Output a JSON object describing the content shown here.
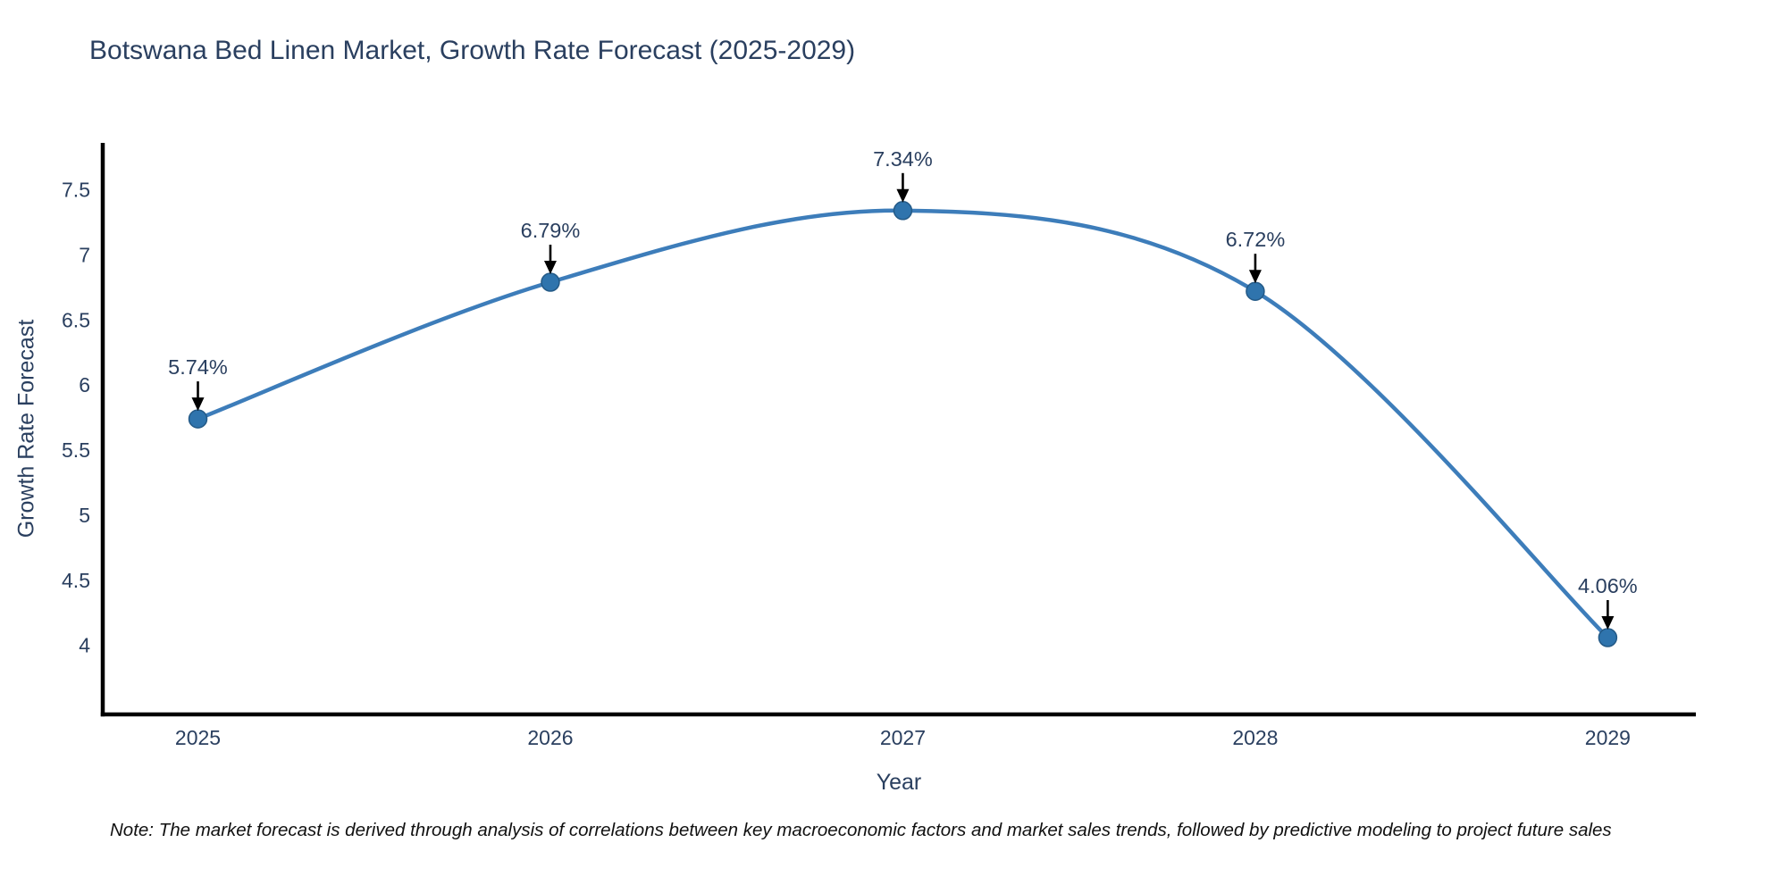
{
  "title": "Botswana Bed Linen Market, Growth Rate Forecast (2025-2029)",
  "note": "Note: The market forecast is derived through analysis of correlations between key macroeconomic factors and market sales trends, followed by predictive modeling to project future sales",
  "chart_data": {
    "type": "line",
    "line_shape": "spline",
    "categories": [
      "2025",
      "2026",
      "2027",
      "2028",
      "2029"
    ],
    "x": [
      2025,
      2026,
      2027,
      2028,
      2029
    ],
    "values": [
      5.74,
      6.79,
      7.34,
      6.72,
      4.06
    ],
    "point_labels": [
      "5.74%",
      "6.79%",
      "7.34%",
      "6.72%",
      "4.06%"
    ],
    "title": "Botswana Bed Linen Market, Growth Rate Forecast (2025-2029)",
    "xlabel": "Year",
    "ylabel": "Growth Rate Forecast",
    "yticks": [
      4,
      4.5,
      5,
      5.5,
      6,
      6.5,
      7,
      7.5
    ],
    "ylim": [
      3.47,
      7.86
    ],
    "xlim": [
      2024.73,
      2029.25
    ],
    "grid": false,
    "legend": "none",
    "annotations": "arrow-down-to-point",
    "colors": {
      "line": "#3d7dba",
      "marker_fill": "#2f74ad",
      "marker_edge": "#245a87",
      "axis_line": "#000000",
      "tick_text": "#2a3f5f",
      "annotation_text": "#2a3f5f",
      "annotation_arrow": "#000000",
      "title_text": "#2a3f5f",
      "background": "#ffffff"
    }
  }
}
